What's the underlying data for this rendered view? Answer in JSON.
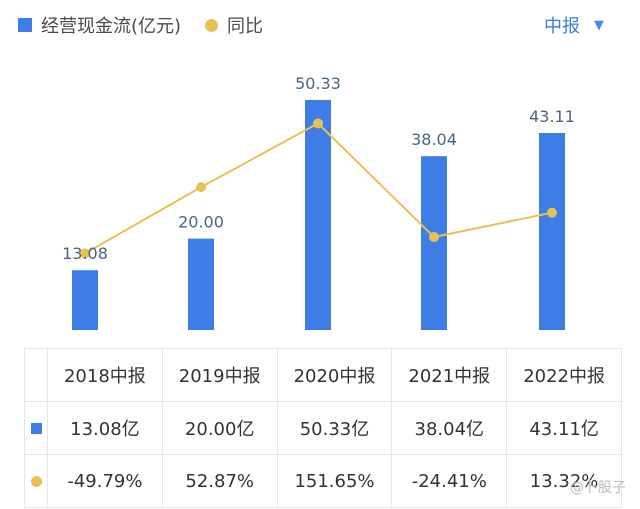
{
  "legend": {
    "bar_label": "经营现金流(亿元)",
    "line_label": "同比"
  },
  "period_selector": {
    "label": "中报",
    "chevron": "▼"
  },
  "colors": {
    "bar": "#3f7de6",
    "line": "#e8c156",
    "label": "#4a6585",
    "positive": "#d9534f",
    "negative": "#3a9b67"
  },
  "chart_data": {
    "type": "bar",
    "categories": [
      "2018中报",
      "2019中报",
      "2020中报",
      "2021中报",
      "2022中报"
    ],
    "series": [
      {
        "name": "经营现金流(亿元)",
        "type": "bar",
        "values": [
          13.08,
          20.0,
          50.33,
          38.04,
          43.11
        ],
        "labels": [
          "13.08",
          "20.00",
          "50.33",
          "38.04",
          "43.11"
        ]
      },
      {
        "name": "同比",
        "type": "line",
        "values": [
          -49.79,
          52.87,
          151.65,
          -24.41,
          13.32
        ]
      }
    ]
  },
  "table": {
    "headers": [
      "2018中报",
      "2019中报",
      "2020中报",
      "2021中报",
      "2022中报"
    ],
    "cash_flow_row": [
      "13.08亿",
      "20.00亿",
      "50.33亿",
      "38.04亿",
      "43.11亿"
    ],
    "yoy_row": [
      "-49.79%",
      "52.87%",
      "151.65%",
      "-24.41%",
      "13.32%"
    ]
  },
  "watermark": "@卜股子"
}
